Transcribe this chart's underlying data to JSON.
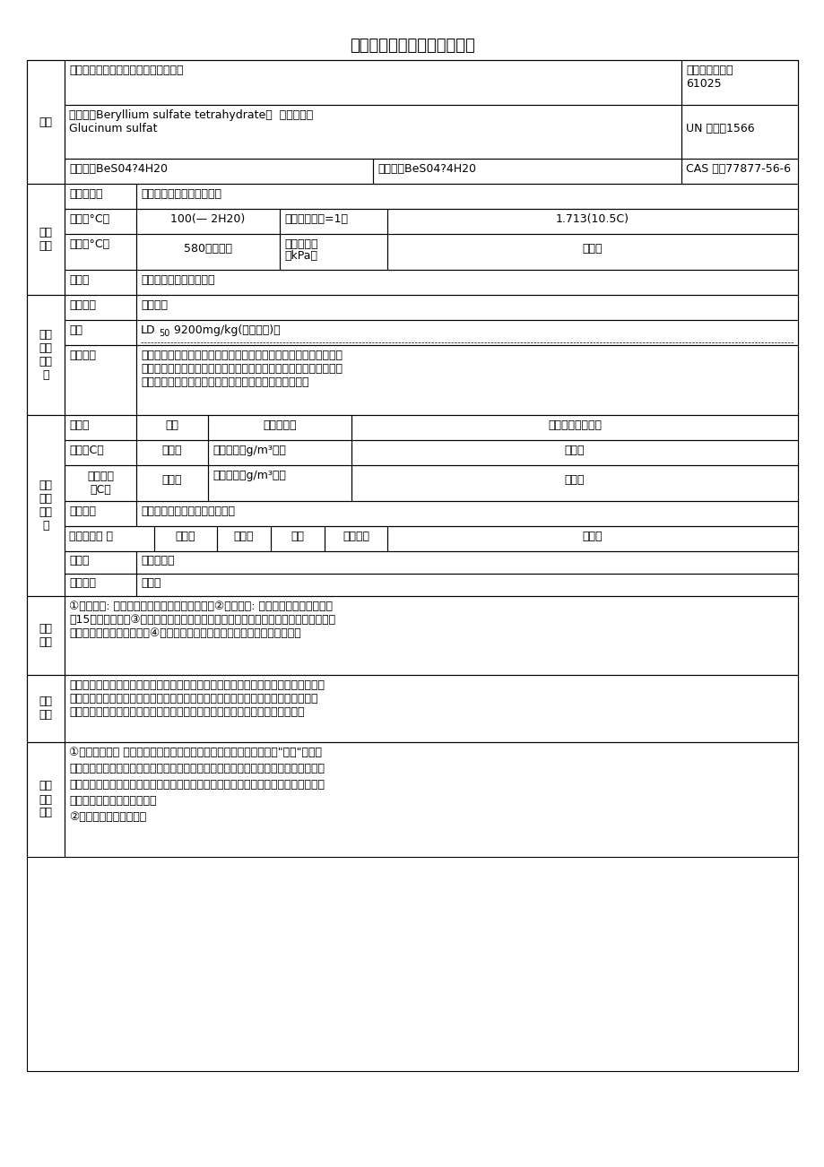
{
  "title": "硫酸铍的理化性质及危险特性",
  "bg_color": "#ffffff",
  "border_color": "#000000",
  "text_color": "#000000",
  "title_fontsize": 13,
  "cell_fontsize": 9,
  "rows": [
    {
      "section": "标识",
      "cells": [
        {
          "label": "中文名：硫酸镀；别名：四水合硫酸镀",
          "right": "危险货物编号：\n61025"
        },
        {
          "label": "英文名：Beryllium sulfate tetrahydrate；  英文别名：\nGlucinum sulfat",
          "right": "UN 编号：1566"
        },
        {
          "label_left": "分子式：BeS04?4H20",
          "label_mid": "分子量：BeS04?4H20",
          "right": "CAS 号：77877-56-6"
        }
      ]
    }
  ]
}
